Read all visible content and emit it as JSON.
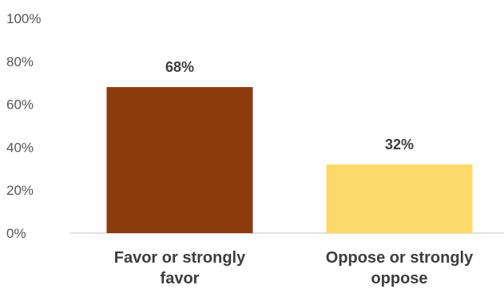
{
  "chart_data": {
    "type": "bar",
    "categories": [
      "Favor or strongly favor",
      "Oppose or strongly oppose"
    ],
    "category_lines": [
      [
        "Favor or strongly",
        "favor"
      ],
      [
        "Oppose or strongly",
        "oppose"
      ]
    ],
    "values": [
      68,
      32
    ],
    "data_labels": [
      "68%",
      "32%"
    ],
    "colors": [
      "#8b3a0c",
      "#fdd96a"
    ],
    "y_ticks": [
      0,
      20,
      40,
      60,
      80,
      100
    ],
    "y_tick_labels": [
      "0%",
      "20%",
      "40%",
      "60%",
      "80%",
      "100%"
    ],
    "ylim": [
      0,
      100
    ],
    "grid": false,
    "legend": "none"
  }
}
